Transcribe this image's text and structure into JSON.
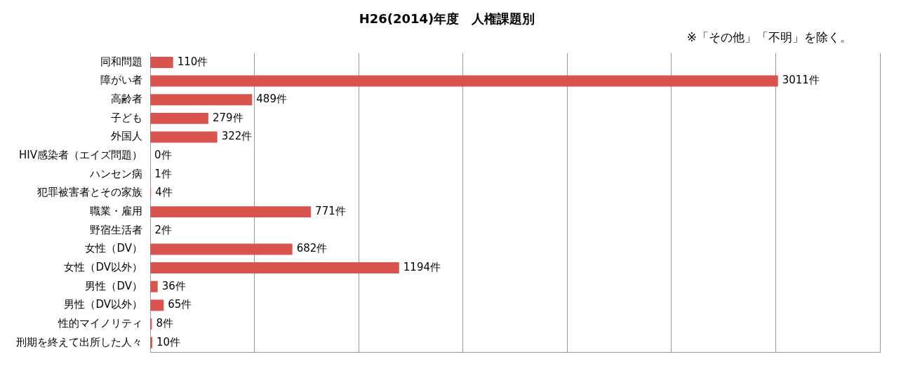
{
  "chart_data": {
    "type": "bar",
    "orientation": "horizontal",
    "title": "H26(2014)年度　人権課題別",
    "annotations": [
      "※「その他」「不明」を除く。"
    ],
    "categories": [
      "同和問題",
      "障がい者",
      "高齢者",
      "子ども",
      "外国人",
      "HIV感染者（エイズ問題）",
      "ハンセン病",
      "犯罪被害者とその家族",
      "職業・雇用",
      "野宿生活者",
      "女性（DV）",
      "女性（DV以外）",
      "男性（DV）",
      "男性（DV以外）",
      "性的マイノリティ",
      "刑期を終えて出所した人々"
    ],
    "values": [
      110,
      3011,
      489,
      279,
      322,
      0,
      1,
      4,
      771,
      2,
      682,
      1194,
      36,
      65,
      8,
      10
    ],
    "value_labels": [
      "110件",
      "3011件",
      "489件",
      "279件",
      "322件",
      "0件",
      "1件",
      "4件",
      "771件",
      "2件",
      "682件",
      "1194件",
      "36件",
      "65件",
      "8件",
      "10件"
    ],
    "color": "#d9534f",
    "xlim": [
      0,
      3500
    ],
    "xticks": [
      {
        "value": 0,
        "label": null
      },
      {
        "value": 500,
        "label": null
      },
      {
        "value": 1000,
        "label": null
      },
      {
        "value": 1500,
        "label": null
      },
      {
        "value": 2000,
        "label": null
      },
      {
        "value": 2500,
        "label": null
      },
      {
        "value": 3000,
        "label": null
      },
      {
        "value": 3500,
        "label": null
      }
    ],
    "grid": "x",
    "tick_labels": "y"
  }
}
